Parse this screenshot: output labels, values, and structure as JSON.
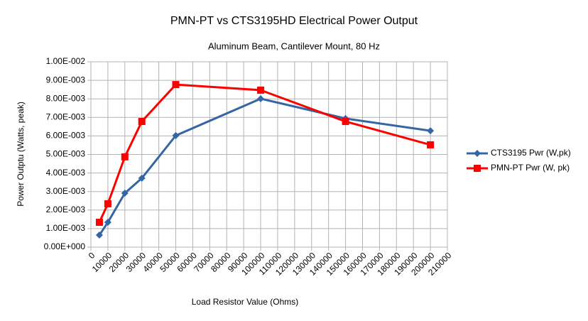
{
  "chart_data": {
    "type": "line",
    "title": "PMN-PT vs CTS3195HD Electrical Power Output",
    "subtitle": "Aluminum Beam, Cantilever Mount, 80 Hz",
    "x_label": "Load Resistor Value  (Ohms)",
    "y_label": "Power Outptu (Watts, peak)",
    "x": [
      5000,
      10000,
      20000,
      30000,
      50000,
      100000,
      150000,
      200000
    ],
    "series": [
      {
        "name": "CTS3195  Pwr (W,pk)",
        "color": "#3465a4",
        "marker": "diamond",
        "values": [
          0.00065,
          0.00134,
          0.00291,
          0.00372,
          0.00602,
          0.00801,
          0.00694,
          0.00628
        ]
      },
      {
        "name": "PMN-PT Pwr (W, pk)",
        "color": "#ff0000",
        "marker": "square",
        "values": [
          0.00134,
          0.00234,
          0.00487,
          0.00678,
          0.00877,
          0.00847,
          0.00678,
          0.00552
        ]
      }
    ],
    "xlim": [
      0,
      210000
    ],
    "xticks": [
      0,
      10000,
      20000,
      30000,
      40000,
      50000,
      60000,
      70000,
      80000,
      90000,
      100000,
      110000,
      120000,
      130000,
      140000,
      150000,
      160000,
      170000,
      180000,
      190000,
      200000,
      210000
    ],
    "ylim": [
      0,
      0.01
    ],
    "yticks": [
      {
        "value": 0,
        "label": "0.00E+000"
      },
      {
        "value": 0.001,
        "label": "1.00E-003"
      },
      {
        "value": 0.002,
        "label": "2.00E-003"
      },
      {
        "value": 0.003,
        "label": "3.00E-003"
      },
      {
        "value": 0.004,
        "label": "4.00E-003"
      },
      {
        "value": 0.005,
        "label": "5.00E-003"
      },
      {
        "value": 0.006,
        "label": "6.00E-003"
      },
      {
        "value": 0.007,
        "label": "7.00E-003"
      },
      {
        "value": 0.008,
        "label": "8.00E-003"
      },
      {
        "value": 0.009,
        "label": "9.00E-003"
      },
      {
        "value": 0.01,
        "label": "1.00E-002"
      }
    ],
    "grid": true,
    "legend": "right"
  }
}
